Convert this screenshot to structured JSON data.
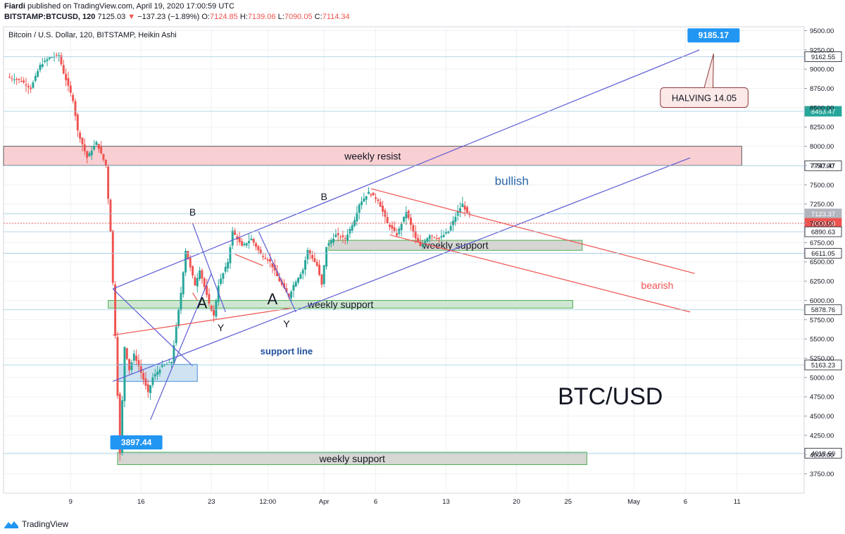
{
  "header": {
    "author": "Fiardi",
    "published": "published on TradingView.com, April 19, 2020 17:00:59 UTC",
    "symbol": "BITSTAMP:BTCUSD, 120",
    "last": "7125.03",
    "change": "−137.23 (−1.89%)",
    "o_label": "O:",
    "o_value": "7124.85",
    "h_label": "H:",
    "h_value": "7139.06",
    "l_label": "L:",
    "l_value": "7090.05",
    "c_label": "C:",
    "c_value": "7114.34"
  },
  "footer": {
    "brand": "TradingView"
  },
  "chart_data": {
    "type": "candlestick",
    "title": "Bitcoin / U.S. Dollar, 120, BITSTAMP, Heikin Ashi",
    "y_axis": {
      "ticks": [
        3750,
        4000,
        4250,
        4500,
        4750,
        5000,
        5250,
        5500,
        5750,
        6000,
        6250,
        6500,
        6750,
        7000,
        7250,
        7500,
        7750,
        8000,
        8250,
        8500,
        8750,
        9000,
        9250,
        9500
      ],
      "range": [
        3500,
        9550
      ]
    },
    "x_axis": {
      "ticks": [
        {
          "label": "9",
          "idx": 13
        },
        {
          "label": "16",
          "idx": 28
        },
        {
          "label": "23",
          "idx": 43
        },
        {
          "label": "12:00",
          "idx": 55
        },
        {
          "label": "Apr",
          "idx": 67
        },
        {
          "label": "6",
          "idx": 78
        },
        {
          "label": "13",
          "idx": 93
        },
        {
          "label": "20",
          "idx": 108
        },
        {
          "label": "25",
          "idx": 119
        },
        {
          "label": "May",
          "idx": 133
        },
        {
          "label": "6",
          "idx": 144
        },
        {
          "label": "11",
          "idx": 155
        }
      ],
      "bar_count": 170
    },
    "price_levels": [
      {
        "value": 9162.55,
        "label": "9162.55",
        "style": "box",
        "color": "#ffffff"
      },
      {
        "value": 8453.47,
        "label": "8453.47",
        "style": "fill",
        "color": "#26a69a"
      },
      {
        "value": 7747.47,
        "label": "7747.47",
        "style": "box",
        "color": "#ffffff"
      },
      {
        "value": 7123.37,
        "label": "7123.37",
        "style": "fill",
        "color": "#b2b5be"
      },
      {
        "value": 7000.98,
        "label": "7000.98",
        "style": "fill",
        "color": "#ef5350"
      },
      {
        "value": 6890.63,
        "label": "6890.63",
        "style": "box",
        "color": "#ffffff"
      },
      {
        "value": 6611.05,
        "label": "6611.05",
        "style": "box",
        "color": "#ffffff"
      },
      {
        "value": 5878.76,
        "label": "5878.76",
        "style": "box",
        "color": "#ffffff"
      },
      {
        "value": 5163.23,
        "label": "5163.23",
        "style": "box",
        "color": "#ffffff"
      },
      {
        "value": 4018.6,
        "label": "4018.60",
        "style": "box",
        "color": "#ffffff"
      }
    ],
    "price_path": [
      [
        0,
        8900
      ],
      [
        3,
        8850
      ],
      [
        5,
        8750
      ],
      [
        7,
        9050
      ],
      [
        9,
        9150
      ],
      [
        11,
        9180
      ],
      [
        12,
        8950
      ],
      [
        14,
        8600
      ],
      [
        15,
        8200
      ],
      [
        17,
        7850
      ],
      [
        19,
        8050
      ],
      [
        21,
        7750
      ],
      [
        22,
        6900
      ],
      [
        23,
        5550
      ],
      [
        24,
        4000
      ],
      [
        25,
        5400
      ],
      [
        26,
        5100
      ],
      [
        27,
        5300
      ],
      [
        28,
        5150
      ],
      [
        30,
        4800
      ],
      [
        31,
        5000
      ],
      [
        33,
        5150
      ],
      [
        35,
        5200
      ],
      [
        37,
        6100
      ],
      [
        38,
        6650
      ],
      [
        40,
        6200
      ],
      [
        41,
        6400
      ],
      [
        43,
        5950
      ],
      [
        44,
        5800
      ],
      [
        45,
        6200
      ],
      [
        47,
        6500
      ],
      [
        48,
        6900
      ],
      [
        50,
        6700
      ],
      [
        52,
        6800
      ],
      [
        54,
        6600
      ],
      [
        56,
        6500
      ],
      [
        58,
        6250
      ],
      [
        60,
        6050
      ],
      [
        61,
        6200
      ],
      [
        63,
        6400
      ],
      [
        64,
        6650
      ],
      [
        66,
        6450
      ],
      [
        67,
        6200
      ],
      [
        68,
        6700
      ],
      [
        70,
        6850
      ],
      [
        72,
        6800
      ],
      [
        74,
        7050
      ],
      [
        75,
        7250
      ],
      [
        77,
        7400
      ],
      [
        79,
        7300
      ],
      [
        81,
        7000
      ],
      [
        83,
        6850
      ],
      [
        85,
        7150
      ],
      [
        87,
        6800
      ],
      [
        88,
        6700
      ],
      [
        90,
        6850
      ],
      [
        92,
        6800
      ],
      [
        94,
        6900
      ],
      [
        96,
        7150
      ],
      [
        97,
        7250
      ],
      [
        98,
        7123
      ]
    ],
    "bearish_breaks": [
      [
        22,
        23
      ],
      [
        23,
        24
      ],
      [
        11,
        12
      ],
      [
        14,
        15
      ]
    ],
    "zones": [
      {
        "label": "weekly resist",
        "lo": 7750,
        "hi": 8000,
        "x1": -1,
        "x2": 156,
        "color": "pink"
      },
      {
        "label": "weekly support",
        "lo": 5900,
        "hi": 6000,
        "x1": 21,
        "x2": 120,
        "color": "green"
      },
      {
        "label": "weekly support",
        "lo": 6650,
        "hi": 6780,
        "x1": 68,
        "x2": 122,
        "color": "gray"
      },
      {
        "label": "weekly support",
        "lo": 3870,
        "hi": 4030,
        "x1": 23,
        "x2": 123,
        "color": "gray"
      },
      {
        "label": "",
        "lo": 4950,
        "hi": 5170,
        "x1": 23,
        "x2": 40,
        "color": "blue"
      }
    ],
    "annotations": [
      {
        "text": "B",
        "x": 39,
        "y": 7100,
        "size": 14
      },
      {
        "text": "A",
        "x": 41,
        "y": 5900,
        "size": 22
      },
      {
        "text": "Y",
        "x": 45,
        "y": 5600,
        "size": 14
      },
      {
        "text": "A",
        "x": 56,
        "y": 5950,
        "size": 22
      },
      {
        "text": "Y",
        "x": 59,
        "y": 5650,
        "size": 14
      },
      {
        "text": "B",
        "x": 67,
        "y": 7300,
        "size": 14
      },
      {
        "text": "bullish",
        "x": 107,
        "y": 7500,
        "size": 17
      },
      {
        "text": "bearish",
        "x": 138,
        "y": 6150,
        "size": 14
      },
      {
        "text": "support line",
        "x": 59,
        "y": 5300,
        "size": 13
      },
      {
        "text": "BTC/USD",
        "x": 128,
        "y": 4650,
        "size": 34
      }
    ],
    "callouts": [
      {
        "text": "9185.17",
        "x": 150,
        "y": 9420
      },
      {
        "text": "3897.44",
        "x": 27,
        "y": 4140
      },
      {
        "text": "HALVING 14.05",
        "x": 148,
        "y": 8650
      }
    ],
    "trendlines": [
      {
        "from": [
          22,
          6150
        ],
        "to": [
          147,
          9250
        ],
        "color": "#5b5bd6"
      },
      {
        "from": [
          22,
          4950
        ],
        "to": [
          145,
          7850
        ],
        "color": "#5b5bd6"
      },
      {
        "from": [
          39,
          7000
        ],
        "to": [
          46,
          5850
        ],
        "color": "#5b5bd6"
      },
      {
        "from": [
          30,
          4450
        ],
        "to": [
          43,
          6350
        ],
        "color": "#5b5bd6"
      },
      {
        "from": [
          22,
          6150
        ],
        "to": [
          39,
          5150
        ],
        "color": "#5b5bd6"
      },
      {
        "from": [
          53,
          6900
        ],
        "to": [
          61,
          5850
        ],
        "color": "#5b5bd6"
      },
      {
        "from": [
          22,
          5550
        ],
        "to": [
          60,
          5900
        ],
        "color": "#ef5350"
      },
      {
        "from": [
          77,
          7450
        ],
        "to": [
          146,
          6350
        ],
        "color": "#ef5350"
      },
      {
        "from": [
          81,
          6850
        ],
        "to": [
          145,
          5850
        ],
        "color": "#ef5350"
      },
      {
        "from": [
          48,
          6600
        ],
        "to": [
          54,
          6450
        ],
        "color": "#ef5350"
      },
      {
        "from": [
          39,
          6100
        ],
        "to": [
          40,
          6000
        ],
        "color": "#ef5350"
      }
    ]
  }
}
